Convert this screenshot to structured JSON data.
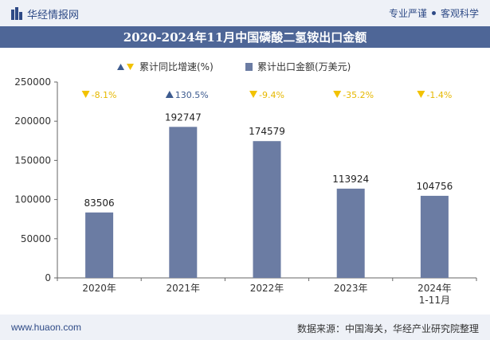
{
  "header": {
    "brand": "华经情报网",
    "tagline_left": "专业严谨",
    "tagline_right": "客观科学"
  },
  "title": "2020-2024年11月中国磷酸二氢铵出口金额",
  "footer": {
    "url": "www.huaon.com",
    "source": "数据来源：中国海关，华经产业研究院整理"
  },
  "watermark": "华经产业研究院",
  "colors": {
    "bar": "#6b7ca3",
    "up": "#3d5b8f",
    "down": "#f2c200",
    "header_bg": "#eef1f7",
    "title_bg": "#4e6697"
  },
  "chart_data": {
    "type": "bar",
    "title": "2020-2024年11月中国磷酸二氢铵出口金额",
    "categories": [
      "2020年",
      "2021年",
      "2022年",
      "2023年",
      "2024年\n1-11月"
    ],
    "legend": [
      "累计同比增速(%)",
      "累计出口金额(万美元)"
    ],
    "series": [
      {
        "name": "累计出口金额(万美元)",
        "values": [
          83506,
          192747,
          174579,
          113924,
          104756
        ]
      },
      {
        "name": "累计同比增速(%)",
        "values": [
          -8.1,
          130.5,
          -9.4,
          -35.2,
          -1.4
        ]
      }
    ],
    "growth_labels": [
      "-8.1%",
      "130.5%",
      "-9.4%",
      "-35.2%",
      "-1.4%"
    ],
    "ylim": [
      0,
      250000
    ],
    "yticks": [
      0,
      50000,
      100000,
      150000,
      200000,
      250000
    ],
    "xlabel": "",
    "ylabel": ""
  }
}
